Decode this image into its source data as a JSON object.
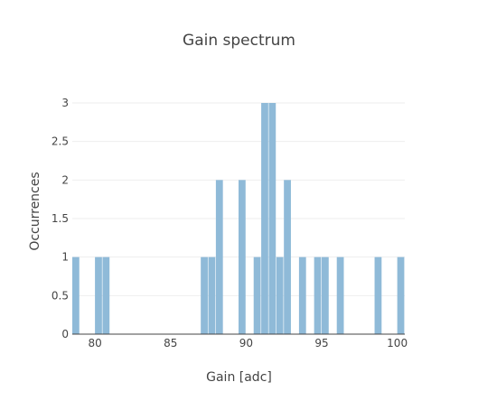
{
  "chart_data": {
    "type": "bar",
    "title": "Gain spectrum",
    "xlabel": "Gain [adc]",
    "ylabel": "Occurrences",
    "xlim": [
      78.5,
      100.5
    ],
    "ylim": [
      0,
      3
    ],
    "bin_width": 0.5,
    "x_ticks": [
      80,
      85,
      90,
      95,
      100
    ],
    "y_ticks": [
      0,
      0.5,
      1,
      1.5,
      2,
      2.5,
      3
    ],
    "y_tick_labels": [
      "0",
      "0.5",
      "1",
      "1.5",
      "2",
      "2.5",
      "3"
    ],
    "bins": [
      {
        "x": 78.75,
        "count": 1
      },
      {
        "x": 80.25,
        "count": 1
      },
      {
        "x": 80.75,
        "count": 1
      },
      {
        "x": 87.25,
        "count": 1
      },
      {
        "x": 87.75,
        "count": 1
      },
      {
        "x": 88.25,
        "count": 2
      },
      {
        "x": 89.75,
        "count": 2
      },
      {
        "x": 90.75,
        "count": 1
      },
      {
        "x": 91.25,
        "count": 3
      },
      {
        "x": 91.75,
        "count": 3
      },
      {
        "x": 92.25,
        "count": 1
      },
      {
        "x": 92.75,
        "count": 2
      },
      {
        "x": 93.75,
        "count": 1
      },
      {
        "x": 94.75,
        "count": 1
      },
      {
        "x": 95.25,
        "count": 1
      },
      {
        "x": 96.25,
        "count": 1
      },
      {
        "x": 98.75,
        "count": 1
      },
      {
        "x": 100.25,
        "count": 1
      }
    ],
    "grid": true,
    "colors": {
      "bar": "#8fbad8",
      "grid": "#eeeeee",
      "axis_line": "#444444",
      "text": "#444444"
    }
  }
}
